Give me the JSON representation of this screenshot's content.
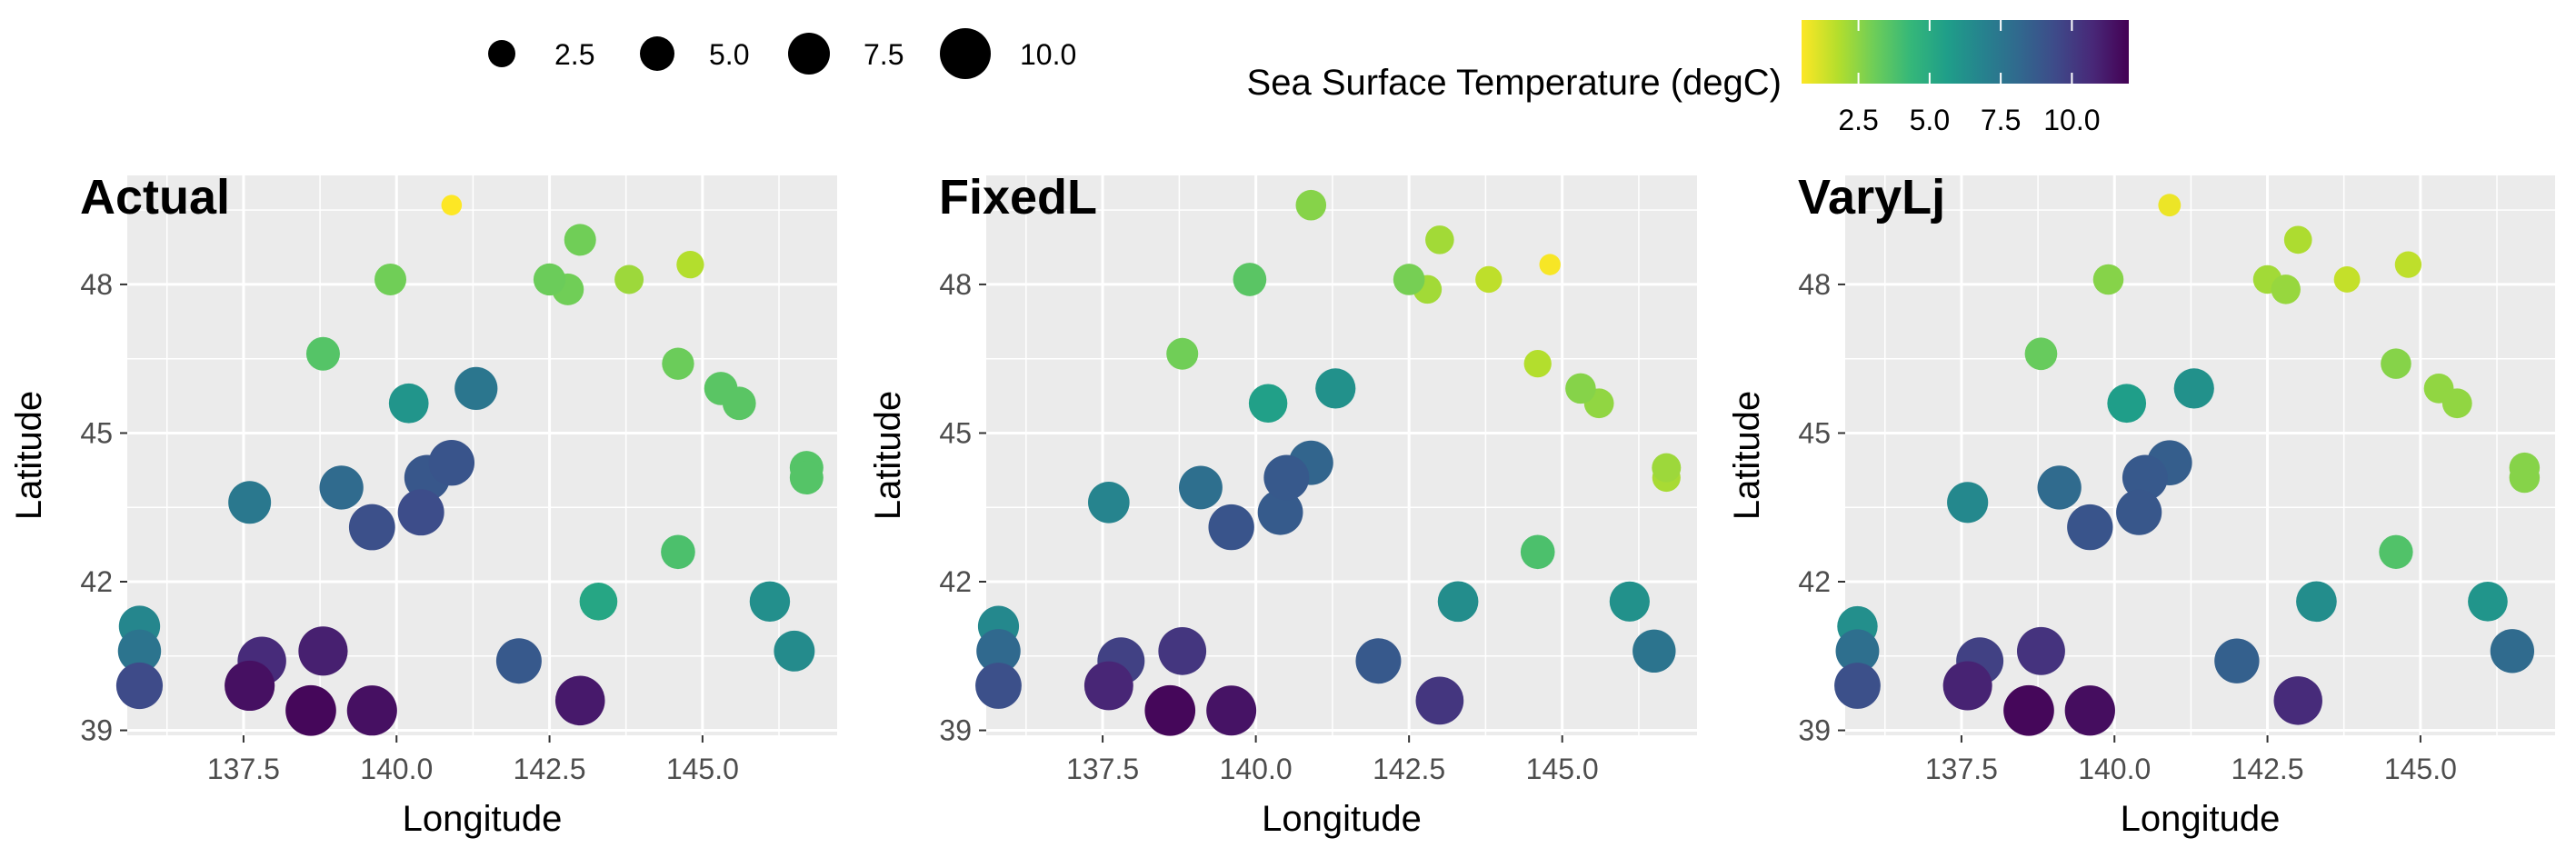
{
  "chart_data": [
    {
      "type": "scatter",
      "title": "Actual",
      "xlabel": "Longitude",
      "ylabel": "Latitude",
      "xlim": [
        135.6,
        147.2
      ],
      "ylim": [
        38.9,
        50.2
      ],
      "xticks": [
        137.5,
        140.0,
        142.5,
        145.0
      ],
      "xtick_labels": [
        "137.5",
        "140.0",
        "142.5",
        "145.0"
      ],
      "yticks": [
        39,
        42,
        45,
        48
      ],
      "ytick_labels": [
        "39",
        "42",
        "45",
        "48"
      ],
      "grid": true,
      "size_variable": "Sea Surface Temperature (degC)",
      "color_variable": "Sea Surface Temperature (degC)",
      "points": [
        {
          "x": 140.9,
          "y": 49.6,
          "value": 0.5
        },
        {
          "x": 143.0,
          "y": 48.9,
          "value": 3.0
        },
        {
          "x": 139.9,
          "y": 48.1,
          "value": 3.0
        },
        {
          "x": 142.5,
          "y": 48.1,
          "value": 3.1
        },
        {
          "x": 142.8,
          "y": 47.9,
          "value": 3.0
        },
        {
          "x": 143.8,
          "y": 48.1,
          "value": 2.2
        },
        {
          "x": 144.8,
          "y": 48.4,
          "value": 1.8
        },
        {
          "x": 138.8,
          "y": 46.6,
          "value": 3.6
        },
        {
          "x": 144.6,
          "y": 46.4,
          "value": 3.1
        },
        {
          "x": 145.3,
          "y": 45.9,
          "value": 3.5
        },
        {
          "x": 145.6,
          "y": 45.6,
          "value": 3.5
        },
        {
          "x": 140.2,
          "y": 45.6,
          "value": 6.0
        },
        {
          "x": 141.3,
          "y": 45.9,
          "value": 7.5
        },
        {
          "x": 146.7,
          "y": 44.3,
          "value": 3.6
        },
        {
          "x": 146.7,
          "y": 44.1,
          "value": 3.6
        },
        {
          "x": 137.6,
          "y": 43.6,
          "value": 7.4
        },
        {
          "x": 139.1,
          "y": 43.9,
          "value": 8.0
        },
        {
          "x": 140.5,
          "y": 44.1,
          "value": 8.9
        },
        {
          "x": 140.9,
          "y": 44.4,
          "value": 9.0
        },
        {
          "x": 139.6,
          "y": 43.1,
          "value": 9.2
        },
        {
          "x": 140.4,
          "y": 43.4,
          "value": 9.3
        },
        {
          "x": 144.6,
          "y": 42.6,
          "value": 3.8
        },
        {
          "x": 143.3,
          "y": 41.6,
          "value": 5.2
        },
        {
          "x": 146.1,
          "y": 41.6,
          "value": 6.3
        },
        {
          "x": 146.5,
          "y": 40.6,
          "value": 6.5
        },
        {
          "x": 135.8,
          "y": 41.1,
          "value": 6.7
        },
        {
          "x": 135.8,
          "y": 40.6,
          "value": 7.6
        },
        {
          "x": 135.8,
          "y": 39.9,
          "value": 9.4
        },
        {
          "x": 142.0,
          "y": 40.4,
          "value": 8.8
        },
        {
          "x": 137.8,
          "y": 40.4,
          "value": 10.6
        },
        {
          "x": 138.8,
          "y": 40.6,
          "value": 11.0
        },
        {
          "x": 137.6,
          "y": 39.9,
          "value": 11.5
        },
        {
          "x": 138.6,
          "y": 39.4,
          "value": 11.8
        },
        {
          "x": 139.6,
          "y": 39.4,
          "value": 11.5
        },
        {
          "x": 143.0,
          "y": 39.6,
          "value": 11.2
        }
      ]
    },
    {
      "type": "scatter",
      "title": "FixedL",
      "xlabel": "Longitude",
      "ylabel": "Latitude",
      "xlim": [
        135.6,
        147.2
      ],
      "ylim": [
        38.9,
        50.2
      ],
      "xticks": [
        137.5,
        140.0,
        142.5,
        145.0
      ],
      "xtick_labels": [
        "137.5",
        "140.0",
        "142.5",
        "145.0"
      ],
      "yticks": [
        39,
        42,
        45,
        48
      ],
      "ytick_labels": [
        "39",
        "42",
        "45",
        "48"
      ],
      "grid": true,
      "size_variable": "Sea Surface Temperature (degC)",
      "color_variable": "Sea Surface Temperature (degC)",
      "points": [
        {
          "x": 140.9,
          "y": 49.6,
          "value": 2.6
        },
        {
          "x": 143.0,
          "y": 48.9,
          "value": 2.1
        },
        {
          "x": 139.9,
          "y": 48.1,
          "value": 3.5
        },
        {
          "x": 142.5,
          "y": 48.1,
          "value": 2.9
        },
        {
          "x": 142.8,
          "y": 47.9,
          "value": 2.1
        },
        {
          "x": 143.8,
          "y": 48.1,
          "value": 1.6
        },
        {
          "x": 144.8,
          "y": 48.4,
          "value": 0.6
        },
        {
          "x": 138.8,
          "y": 46.6,
          "value": 3.0
        },
        {
          "x": 144.6,
          "y": 46.4,
          "value": 1.8
        },
        {
          "x": 145.3,
          "y": 45.9,
          "value": 2.6
        },
        {
          "x": 145.6,
          "y": 45.6,
          "value": 2.4
        },
        {
          "x": 140.2,
          "y": 45.6,
          "value": 5.5
        },
        {
          "x": 141.3,
          "y": 45.9,
          "value": 6.2
        },
        {
          "x": 146.7,
          "y": 44.3,
          "value": 2.2
        },
        {
          "x": 146.7,
          "y": 44.1,
          "value": 2.0
        },
        {
          "x": 137.6,
          "y": 43.6,
          "value": 6.8
        },
        {
          "x": 139.1,
          "y": 43.9,
          "value": 7.8
        },
        {
          "x": 140.5,
          "y": 44.1,
          "value": 8.8
        },
        {
          "x": 140.9,
          "y": 44.4,
          "value": 8.3
        },
        {
          "x": 139.6,
          "y": 43.1,
          "value": 9.0
        },
        {
          "x": 140.4,
          "y": 43.4,
          "value": 8.7
        },
        {
          "x": 144.6,
          "y": 42.6,
          "value": 3.8
        },
        {
          "x": 143.3,
          "y": 41.6,
          "value": 6.4
        },
        {
          "x": 146.1,
          "y": 41.6,
          "value": 6.2
        },
        {
          "x": 146.5,
          "y": 40.6,
          "value": 7.6
        },
        {
          "x": 135.8,
          "y": 41.1,
          "value": 6.6
        },
        {
          "x": 135.8,
          "y": 40.6,
          "value": 8.1
        },
        {
          "x": 135.8,
          "y": 39.9,
          "value": 9.2
        },
        {
          "x": 142.0,
          "y": 40.4,
          "value": 8.8
        },
        {
          "x": 137.8,
          "y": 40.4,
          "value": 9.8
        },
        {
          "x": 138.8,
          "y": 40.6,
          "value": 10.2
        },
        {
          "x": 137.6,
          "y": 39.9,
          "value": 10.8
        },
        {
          "x": 138.6,
          "y": 39.4,
          "value": 11.8
        },
        {
          "x": 139.6,
          "y": 39.4,
          "value": 11.4
        },
        {
          "x": 143.0,
          "y": 39.6,
          "value": 10.2
        }
      ]
    },
    {
      "type": "scatter",
      "title": "VaryLj",
      "xlabel": "Longitude",
      "ylabel": "Latitude",
      "xlim": [
        135.6,
        147.2
      ],
      "ylim": [
        38.9,
        50.2
      ],
      "xticks": [
        137.5,
        140.0,
        142.5,
        145.0
      ],
      "xtick_labels": [
        "137.5",
        "140.0",
        "142.5",
        "145.0"
      ],
      "yticks": [
        39,
        42,
        45,
        48
      ],
      "ytick_labels": [
        "39",
        "42",
        "45",
        "48"
      ],
      "grid": true,
      "size_variable": "Sea Surface Temperature (degC)",
      "color_variable": "Sea Surface Temperature (degC)",
      "points": [
        {
          "x": 140.9,
          "y": 49.6,
          "value": 0.8
        },
        {
          "x": 143.0,
          "y": 48.9,
          "value": 1.9
        },
        {
          "x": 139.9,
          "y": 48.1,
          "value": 2.6
        },
        {
          "x": 142.5,
          "y": 48.1,
          "value": 2.1
        },
        {
          "x": 142.8,
          "y": 47.9,
          "value": 2.3
        },
        {
          "x": 143.8,
          "y": 48.1,
          "value": 1.5
        },
        {
          "x": 144.8,
          "y": 48.4,
          "value": 1.6
        },
        {
          "x": 138.8,
          "y": 46.6,
          "value": 3.2
        },
        {
          "x": 144.6,
          "y": 46.4,
          "value": 2.6
        },
        {
          "x": 145.3,
          "y": 45.9,
          "value": 2.4
        },
        {
          "x": 145.6,
          "y": 45.6,
          "value": 2.4
        },
        {
          "x": 140.2,
          "y": 45.6,
          "value": 5.6
        },
        {
          "x": 141.3,
          "y": 45.9,
          "value": 6.2
        },
        {
          "x": 146.7,
          "y": 44.3,
          "value": 2.6
        },
        {
          "x": 146.7,
          "y": 44.1,
          "value": 2.6
        },
        {
          "x": 137.6,
          "y": 43.6,
          "value": 6.6
        },
        {
          "x": 139.1,
          "y": 43.9,
          "value": 8.0
        },
        {
          "x": 140.5,
          "y": 44.1,
          "value": 8.8
        },
        {
          "x": 140.9,
          "y": 44.4,
          "value": 8.6
        },
        {
          "x": 139.6,
          "y": 43.1,
          "value": 9.0
        },
        {
          "x": 140.4,
          "y": 43.4,
          "value": 8.9
        },
        {
          "x": 144.6,
          "y": 42.6,
          "value": 3.7
        },
        {
          "x": 143.3,
          "y": 41.6,
          "value": 6.4
        },
        {
          "x": 146.1,
          "y": 41.6,
          "value": 6.0
        },
        {
          "x": 146.5,
          "y": 40.6,
          "value": 8.0
        },
        {
          "x": 135.8,
          "y": 41.1,
          "value": 6.3
        },
        {
          "x": 135.8,
          "y": 40.6,
          "value": 7.8
        },
        {
          "x": 135.8,
          "y": 39.9,
          "value": 9.2
        },
        {
          "x": 142.0,
          "y": 40.4,
          "value": 8.5
        },
        {
          "x": 137.8,
          "y": 40.4,
          "value": 9.8
        },
        {
          "x": 138.8,
          "y": 40.6,
          "value": 10.3
        },
        {
          "x": 137.6,
          "y": 39.9,
          "value": 10.9
        },
        {
          "x": 138.6,
          "y": 39.4,
          "value": 11.8
        },
        {
          "x": 139.6,
          "y": 39.4,
          "value": 11.6
        },
        {
          "x": 143.0,
          "y": 39.6,
          "value": 10.6
        }
      ]
    }
  ],
  "legend": {
    "size": {
      "placement": "top",
      "breaks": [
        2.5,
        5.0,
        7.5,
        10.0
      ],
      "labels": [
        "2.5",
        "5.0",
        "7.5",
        "10.0"
      ]
    },
    "color": {
      "placement": "top",
      "title": "Sea Surface Temperature (degC)",
      "breaks": [
        2.5,
        5.0,
        7.5,
        10.0
      ],
      "labels": [
        "2.5",
        "5.0",
        "7.5",
        "10.0"
      ],
      "range": [
        0.5,
        12.0
      ],
      "palette": "viridis (reversed)",
      "colors": [
        "#FDE725",
        "#B4DE2C",
        "#6DCD59",
        "#35B779",
        "#1F9E89",
        "#26828E",
        "#31688E",
        "#3E4A89",
        "#482878",
        "#440154"
      ]
    }
  },
  "colors": {
    "panel_background": "#EBEBEB",
    "grid": "#FFFFFF",
    "tick_text": "#4D4D4D"
  }
}
